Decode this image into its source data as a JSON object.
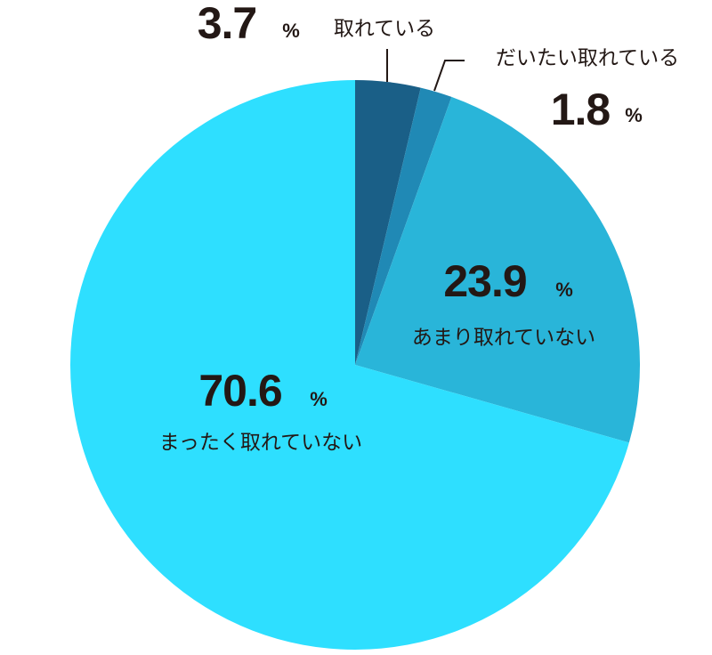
{
  "chart_data": {
    "type": "pie",
    "categories": [
      "取れている",
      "だいたい取れている",
      "あまり取れていない",
      "まったく取れていない"
    ],
    "values": [
      3.7,
      1.8,
      23.9,
      70.6
    ],
    "colors": [
      "#1a5f87",
      "#2089b5",
      "#29b5d9",
      "#2edfff"
    ],
    "unit": "%"
  }
}
